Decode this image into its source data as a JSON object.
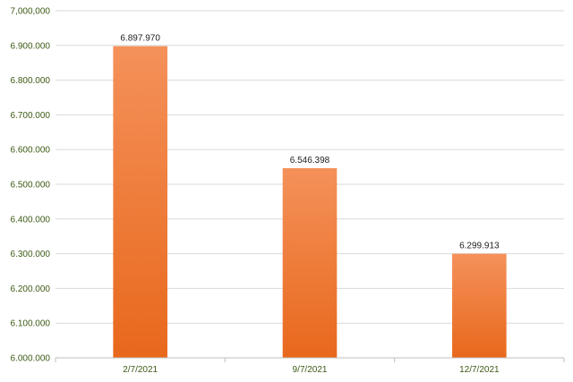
{
  "chart_data": {
    "type": "bar",
    "title": "",
    "xlabel": "",
    "ylabel": "",
    "categories": [
      "2/7/2021",
      "9/7/2021",
      "12/7/2021"
    ],
    "values": [
      6897970,
      6546398,
      6299913
    ],
    "value_labels": [
      "6.897.970",
      "6.546.398",
      "6.299.913"
    ],
    "ylim": [
      6000000,
      7000000
    ],
    "yticks": [
      6000000,
      6100000,
      6200000,
      6300000,
      6400000,
      6500000,
      6600000,
      6700000,
      6800000,
      6900000,
      7000000
    ],
    "ytick_labels": [
      "6.000.000",
      "6.100.000",
      "6.200.000",
      "6.300.000",
      "6.400.000",
      "6.500.000",
      "6.600.000",
      "6.700.000",
      "6.800.000",
      "6.900.000",
      "7,000,000"
    ],
    "grid": true,
    "bar_color_top": "#f4915a",
    "bar_color_bottom": "#e8681c"
  }
}
